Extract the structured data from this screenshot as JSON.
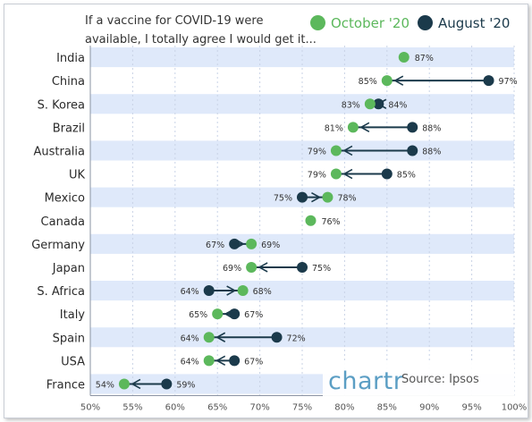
{
  "title": "If a vaccine for COVID-19 were available, I totally agree I would get it...",
  "source": "Source: Ipsos",
  "brand": "chartr",
  "colors": {
    "october": "#5cb85c",
    "august": "#1b3a4b",
    "arrow": "#1b3a4b",
    "band": "#dfe9fa",
    "grid": "#c9d3e6",
    "brand": "#5b9ec4"
  },
  "chart_data": {
    "type": "scatter",
    "series": [
      {
        "name": "October '20",
        "color": "#5cb85c"
      },
      {
        "name": "August '20",
        "color": "#1b3a4b"
      }
    ],
    "categories": [
      "India",
      "China",
      "S. Korea",
      "Brazil",
      "Australia",
      "UK",
      "Mexico",
      "Canada",
      "Germany",
      "Japan",
      "S. Africa",
      "Italy",
      "Spain",
      "USA",
      "France"
    ],
    "october": [
      87,
      85,
      83,
      81,
      79,
      79,
      78,
      76,
      69,
      69,
      68,
      65,
      64,
      64,
      54
    ],
    "august": [
      null,
      97,
      84,
      88,
      88,
      85,
      75,
      null,
      67,
      75,
      64,
      67,
      72,
      67,
      59
    ],
    "x_ticks": [
      "50%",
      "55%",
      "60%",
      "65%",
      "70%",
      "75%",
      "80%",
      "85%",
      "90%",
      "95%",
      "100%"
    ],
    "xlim": [
      50,
      100
    ],
    "unit": "%"
  }
}
